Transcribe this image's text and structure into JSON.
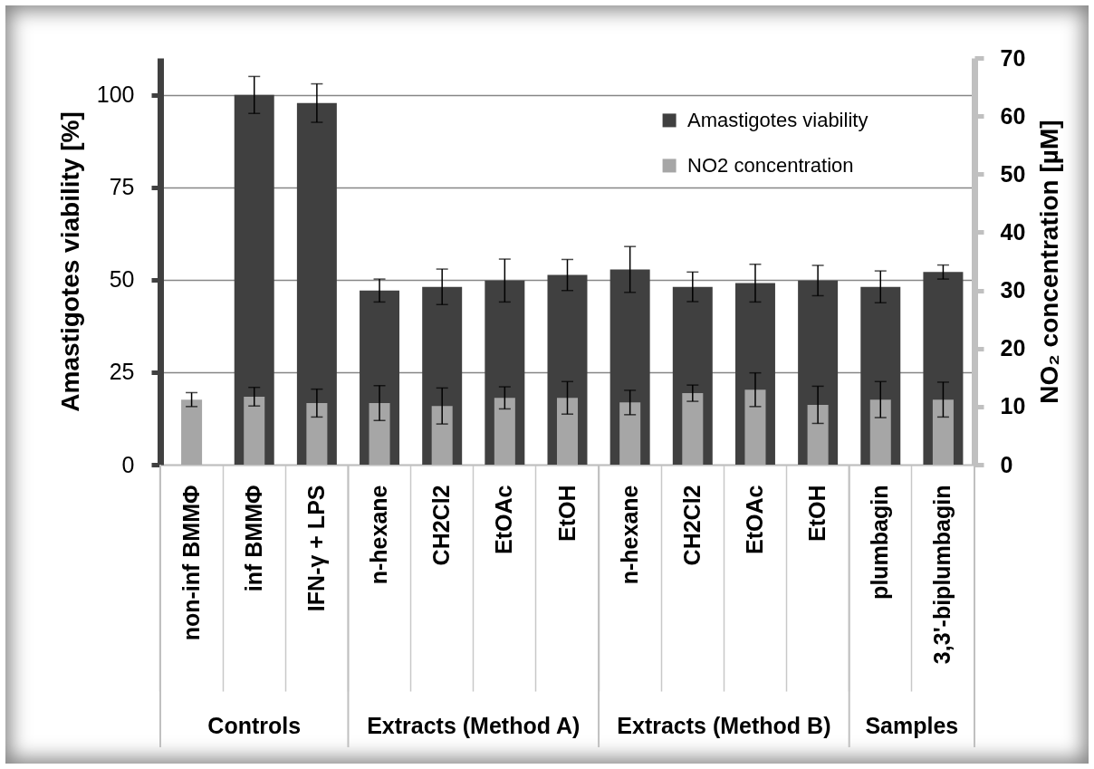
{
  "chart_data": {
    "type": "bar",
    "categories": [
      "non-inf BMMΦ",
      "inf BMMΦ",
      "IFN-γ + LPS",
      "n-hexane",
      "CH2Cl2",
      "EtOAc",
      "EtOH",
      "n-hexane",
      "CH2Cl2",
      "EtOAc",
      "EtOH",
      "plumbagin",
      "3,3'-biplumbagin"
    ],
    "series": [
      {
        "name": "Amastigotes viability",
        "color": "#404040",
        "values": [
          null,
          100,
          97.8,
          47.1,
          48.1,
          49.8,
          51.3,
          52.8,
          48.1,
          49.1,
          49.8,
          48.1,
          52.1
        ],
        "errors": [
          null,
          5,
          5.2,
          3.1,
          4.8,
          5.8,
          4.2,
          6.2,
          4,
          5.1,
          4.1,
          4.3,
          1.9
        ]
      },
      {
        "name": "NO2 concentration",
        "color": "#a6a6a6",
        "axis": "y2",
        "values": [
          11.2,
          11.7,
          10.6,
          10.6,
          10.1,
          11.5,
          11.5,
          10.7,
          12.3,
          12.9,
          10.3,
          11.2,
          11.2
        ],
        "errors": [
          1.2,
          1.6,
          2.4,
          3,
          3.1,
          1.9,
          2.8,
          2.1,
          1.4,
          2.9,
          3.2,
          3.1,
          3
        ]
      }
    ],
    "ylabel": "Amastigotes viability [%]",
    "y2label": "NO₂ concentration [µM]",
    "ylim": [
      0,
      110
    ],
    "yticks": [
      0,
      25,
      50,
      75,
      100
    ],
    "y2lim": [
      0,
      70
    ],
    "y2ticks": [
      0,
      10,
      20,
      30,
      40,
      50,
      60,
      70
    ],
    "grid": "y",
    "legend": "top right",
    "annotations": [
      "Controls",
      "Extracts (Method A)",
      "Extracts (Method B)",
      "Samples"
    ]
  }
}
